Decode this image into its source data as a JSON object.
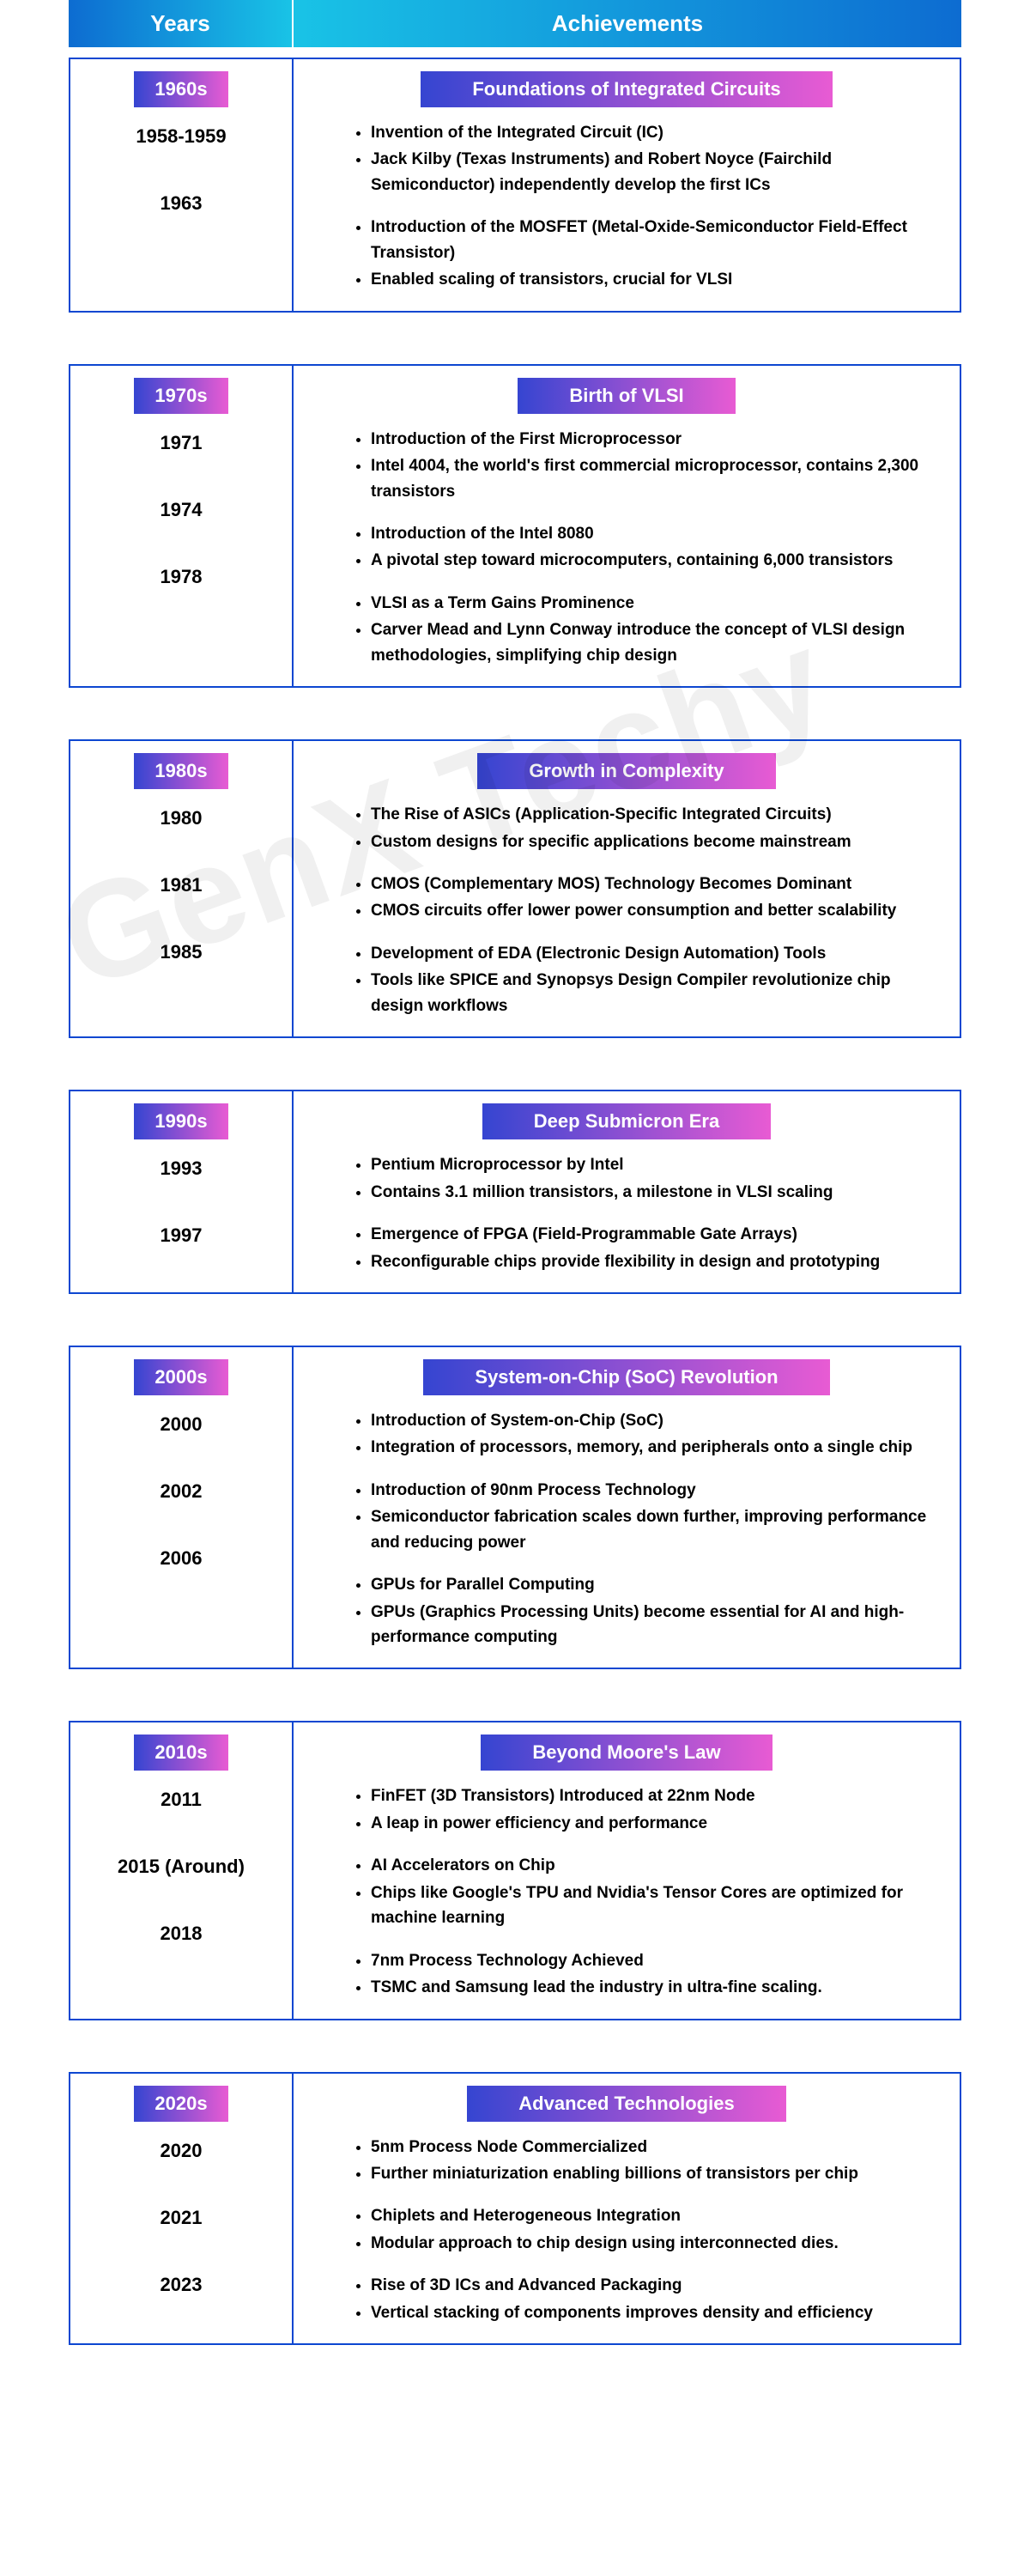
{
  "watermark": "GenX Techy",
  "header": {
    "years": "Years",
    "achievements": "Achievements"
  },
  "colors": {
    "border": "#0d47d1",
    "header_grad_start": "#0d6cd1",
    "header_grad_end": "#19c3e6",
    "badge_grad_start": "#3545d1",
    "badge_grad_end": "#e85bd3",
    "text": "#000000",
    "watermark": "rgba(0,0,0,0.06)"
  },
  "decades": [
    {
      "decade": "1960s",
      "title": "Foundations of Integrated Circuits",
      "rows": [
        {
          "year": "1958-1959",
          "bullets": [
            "Invention of the Integrated Circuit (IC)",
            "Jack Kilby (Texas Instruments) and Robert Noyce (Fairchild Semiconductor) independently develop the first ICs"
          ]
        },
        {
          "year": "1963",
          "bullets": [
            "Introduction of the MOSFET (Metal-Oxide-Semiconductor Field-Effect Transistor)",
            "Enabled scaling of transistors, crucial for VLSI"
          ]
        }
      ]
    },
    {
      "decade": "1970s",
      "title": "Birth of VLSI",
      "rows": [
        {
          "year": "1971",
          "bullets": [
            "Introduction of the First Microprocessor",
            "Intel 4004, the world's first commercial microprocessor, contains 2,300 transistors"
          ]
        },
        {
          "year": "1974",
          "bullets": [
            "Introduction of the Intel 8080",
            "A pivotal step toward microcomputers, containing 6,000 transistors"
          ]
        },
        {
          "year": "1978",
          "bullets": [
            "VLSI as a Term Gains Prominence",
            "Carver Mead and Lynn Conway introduce the concept of VLSI design methodologies, simplifying chip design"
          ]
        }
      ]
    },
    {
      "decade": "1980s",
      "title": "Growth in Complexity",
      "rows": [
        {
          "year": "1980",
          "bullets": [
            "The Rise of ASICs (Application-Specific Integrated Circuits)",
            "Custom designs for specific applications become mainstream"
          ]
        },
        {
          "year": "1981",
          "bullets": [
            "CMOS (Complementary MOS) Technology Becomes Dominant",
            "CMOS circuits offer lower power consumption and better scalability"
          ]
        },
        {
          "year": "1985",
          "bullets": [
            "Development of EDA (Electronic Design Automation) Tools",
            "Tools like SPICE and Synopsys Design Compiler revolutionize chip design workflows"
          ]
        }
      ]
    },
    {
      "decade": "1990s",
      "title": "Deep Submicron Era",
      "rows": [
        {
          "year": "1993",
          "bullets": [
            "Pentium Microprocessor by Intel",
            "Contains 3.1 million transistors, a milestone in VLSI scaling"
          ]
        },
        {
          "year": "1997",
          "bullets": [
            "Emergence of FPGA (Field-Programmable Gate Arrays)",
            "Reconfigurable chips provide flexibility in design and prototyping"
          ]
        }
      ]
    },
    {
      "decade": "2000s",
      "title": "System-on-Chip (SoC) Revolution",
      "rows": [
        {
          "year": "2000",
          "bullets": [
            "Introduction of System-on-Chip (SoC)",
            "Integration of processors, memory, and peripherals onto a single chip"
          ]
        },
        {
          "year": "2002",
          "bullets": [
            "Introduction of 90nm Process Technology",
            "Semiconductor fabrication scales down further, improving performance and reducing power"
          ]
        },
        {
          "year": "2006",
          "bullets": [
            "GPUs for Parallel Computing",
            "GPUs (Graphics Processing Units) become essential for AI and high-performance computing"
          ]
        }
      ]
    },
    {
      "decade": "2010s",
      "title": "Beyond Moore's Law",
      "rows": [
        {
          "year": "2011",
          "bullets": [
            "FinFET (3D Transistors) Introduced at 22nm Node",
            "A leap in power efficiency and performance"
          ]
        },
        {
          "year": "2015 (Around)",
          "bullets": [
            "AI Accelerators on Chip",
            "Chips like Google's TPU and Nvidia's Tensor Cores are optimized for machine learning"
          ]
        },
        {
          "year": "2018",
          "bullets": [
            "7nm Process Technology Achieved",
            "TSMC and Samsung lead the industry in ultra-fine scaling."
          ]
        }
      ]
    },
    {
      "decade": "2020s",
      "title": "Advanced Technologies",
      "rows": [
        {
          "year": "2020",
          "bullets": [
            "5nm Process Node Commercialized",
            "Further miniaturization enabling billions of transistors per chip"
          ]
        },
        {
          "year": "2021",
          "bullets": [
            "Chiplets and Heterogeneous Integration",
            "Modular approach to chip design using interconnected dies."
          ]
        },
        {
          "year": "2023",
          "bullets": [
            "Rise of 3D ICs and Advanced Packaging",
            "Vertical stacking of components improves density and efficiency"
          ]
        }
      ]
    }
  ]
}
